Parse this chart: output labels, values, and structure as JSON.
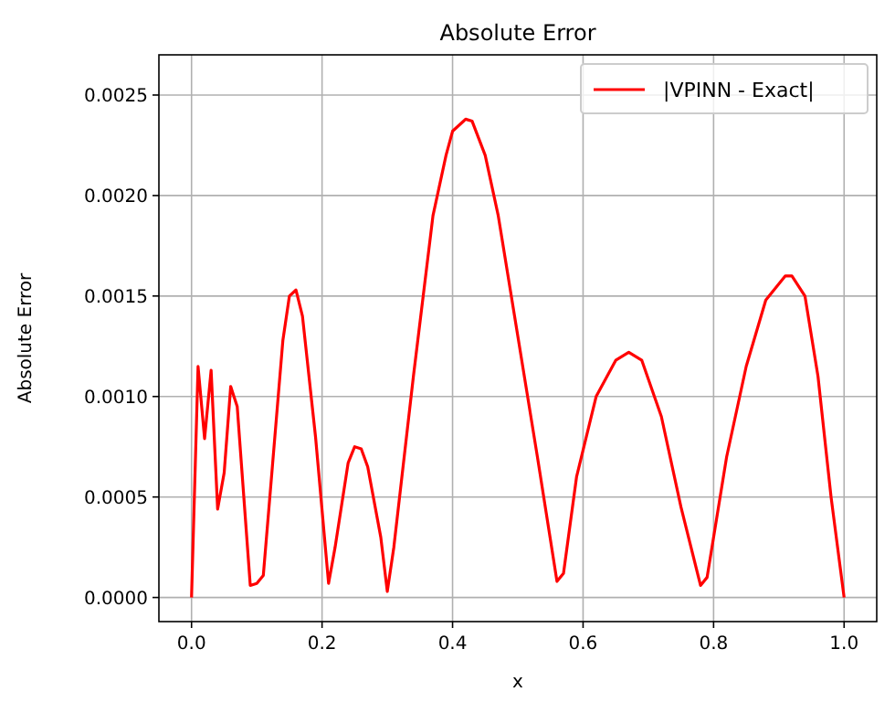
{
  "chart_data": {
    "type": "line",
    "title": "Absolute Error",
    "xlabel": "x",
    "ylabel": "Absolute Error",
    "x": [
      0,
      0.01,
      0.02,
      0.03,
      0.04,
      0.05,
      0.06,
      0.07,
      0.09,
      0.1,
      0.11,
      0.14,
      0.15,
      0.16,
      0.17,
      0.19,
      0.21,
      0.22,
      0.24,
      0.25,
      0.26,
      0.27,
      0.29,
      0.3,
      0.31,
      0.34,
      0.37,
      0.39,
      0.4,
      0.42,
      0.43,
      0.45,
      0.47,
      0.5,
      0.53,
      0.56,
      0.57,
      0.59,
      0.62,
      0.65,
      0.67,
      0.69,
      0.72,
      0.75,
      0.78,
      0.79,
      0.82,
      0.85,
      0.88,
      0.91,
      0.92,
      0.94,
      0.96,
      0.98,
      1
    ],
    "series": [
      {
        "name": "|VPINN - Exact|",
        "color": "#ff0000",
        "values": [
          0,
          0.00115,
          0.00079,
          0.00113,
          0.00044,
          0.00062,
          0.00105,
          0.00095,
          6e-05,
          7e-05,
          0.00011,
          0.00128,
          0.0015,
          0.00153,
          0.0014,
          0.0008,
          7e-05,
          0.00025,
          0.00067,
          0.00075,
          0.00074,
          0.00065,
          0.0003,
          3e-05,
          0.00025,
          0.0011,
          0.0019,
          0.0022,
          0.00232,
          0.00238,
          0.00237,
          0.0022,
          0.0019,
          0.0013,
          0.0007,
          8e-05,
          0.00012,
          0.0006,
          0.001,
          0.00118,
          0.00122,
          0.00118,
          0.0009,
          0.00045,
          6e-05,
          0.0001,
          0.0007,
          0.00115,
          0.00148,
          0.0016,
          0.0016,
          0.0015,
          0.0011,
          0.0005,
          0
        ]
      }
    ],
    "xlim": [
      -0.05,
      1.05
    ],
    "ylim": [
      -0.00012,
      0.0027
    ],
    "xticks": [
      {
        "value": 0,
        "label": "0.0"
      },
      {
        "value": 0.2,
        "label": "0.2"
      },
      {
        "value": 0.4,
        "label": "0.4"
      },
      {
        "value": 0.6,
        "label": "0.6"
      },
      {
        "value": 0.8,
        "label": "0.8"
      },
      {
        "value": 1,
        "label": "1.0"
      }
    ],
    "yticks": [
      {
        "value": 0,
        "label": "0.0000"
      },
      {
        "value": 0.0005,
        "label": "0.0005"
      },
      {
        "value": 0.001,
        "label": "0.0010"
      },
      {
        "value": 0.0015,
        "label": "0.0015"
      },
      {
        "value": 0.002,
        "label": "0.0020"
      },
      {
        "value": 0.0025,
        "label": "0.0025"
      }
    ],
    "grid": true,
    "legend": "top right",
    "line_style": "solid",
    "marker": "none"
  }
}
